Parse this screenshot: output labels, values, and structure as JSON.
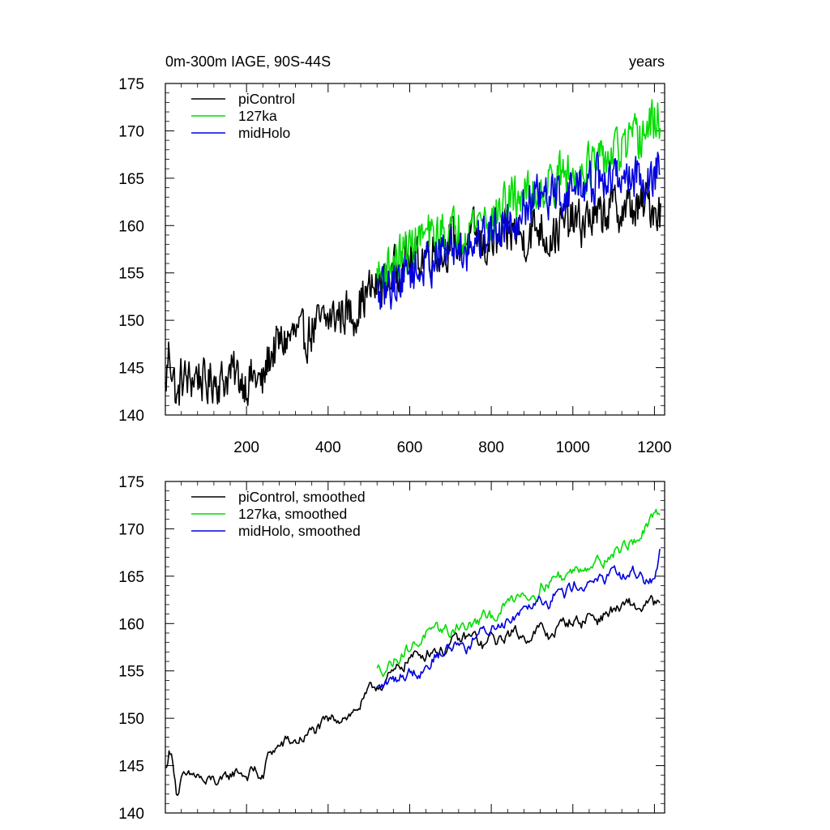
{
  "chart_data": [
    {
      "type": "line",
      "title": "0m-300m IAGE, 90S-44S",
      "title_right": "years",
      "xlabel": "",
      "ylabel": "",
      "xlim": [
        1,
        1225
      ],
      "ylim": [
        140,
        175
      ],
      "yticks": [
        140,
        145,
        150,
        155,
        160,
        165,
        170,
        175
      ],
      "xticks": [
        200,
        400,
        600,
        800,
        1000,
        1200
      ],
      "legend_location": "top-left",
      "smoothed": false,
      "series": [
        {
          "name": "piControl",
          "color": "#000000",
          "x": [
            1,
            10,
            20,
            30,
            40,
            60,
            80,
            100,
            120,
            140,
            160,
            180,
            200,
            220,
            240,
            250,
            260,
            280,
            300,
            320,
            340,
            360,
            380,
            400,
            420,
            440,
            460,
            480,
            500,
            520,
            540,
            560,
            580,
            600,
            620,
            640,
            660,
            680,
            700,
            720,
            740,
            760,
            780,
            800,
            820,
            840,
            860,
            880,
            900,
            920,
            940,
            960,
            980,
            1000,
            1020,
            1040,
            1060,
            1080,
            1100,
            1120,
            1140,
            1160,
            1180,
            1200,
            1215
          ],
          "values": [
            142.5,
            147.0,
            144.5,
            141.0,
            144.0,
            143.5,
            144.5,
            143.0,
            144.0,
            143.5,
            144.5,
            144.0,
            143.5,
            144.0,
            143.0,
            145.5,
            146.5,
            147.5,
            148.0,
            148.5,
            148.0,
            149.0,
            149.5,
            150.0,
            150.5,
            151.0,
            150.5,
            152.0,
            153.0,
            153.5,
            154.0,
            155.0,
            156.0,
            156.5,
            156.5,
            157.0,
            157.5,
            157.0,
            158.5,
            158.0,
            158.5,
            159.0,
            157.5,
            158.5,
            158.0,
            159.0,
            159.5,
            158.5,
            159.5,
            160.0,
            158.5,
            159.5,
            160.0,
            160.5,
            160.0,
            161.0,
            160.5,
            161.5,
            162.0,
            161.5,
            162.0,
            161.5,
            162.5,
            162.0,
            161.5
          ]
        },
        {
          "name": "127ka",
          "color": "#00dd00",
          "x": [
            520,
            540,
            560,
            580,
            600,
            620,
            640,
            660,
            680,
            700,
            720,
            740,
            760,
            780,
            800,
            820,
            840,
            860,
            880,
            900,
            920,
            940,
            960,
            980,
            1000,
            1020,
            1040,
            1060,
            1080,
            1100,
            1120,
            1140,
            1160,
            1180,
            1200,
            1215
          ],
          "values": [
            154.5,
            155.5,
            156.0,
            157.0,
            157.5,
            158.5,
            159.0,
            158.5,
            159.5,
            159.0,
            160.0,
            159.5,
            160.5,
            161.0,
            160.5,
            161.5,
            162.5,
            163.0,
            163.5,
            163.0,
            164.0,
            164.5,
            165.0,
            165.5,
            165.0,
            166.0,
            166.5,
            166.0,
            167.0,
            167.5,
            168.0,
            168.5,
            169.0,
            170.0,
            171.0,
            171.5
          ]
        },
        {
          "name": "midHolo",
          "color": "#0000dd",
          "x": [
            520,
            540,
            560,
            580,
            600,
            620,
            640,
            660,
            680,
            700,
            720,
            740,
            760,
            780,
            800,
            820,
            840,
            860,
            880,
            900,
            920,
            940,
            960,
            980,
            1000,
            1020,
            1040,
            1060,
            1080,
            1100,
            1120,
            1140,
            1160,
            1180,
            1200,
            1215
          ],
          "values": [
            152.5,
            153.0,
            154.0,
            154.5,
            155.5,
            155.0,
            156.0,
            156.5,
            157.0,
            157.5,
            158.0,
            157.5,
            158.5,
            159.0,
            159.5,
            160.0,
            160.5,
            161.0,
            162.0,
            162.5,
            163.0,
            162.5,
            163.5,
            163.0,
            164.0,
            164.5,
            164.0,
            165.0,
            164.5,
            165.0,
            165.5,
            165.0,
            165.5,
            164.5,
            165.0,
            168.0
          ]
        }
      ]
    },
    {
      "type": "line",
      "title": "",
      "xlabel": "",
      "ylabel": "",
      "xlim": [
        1,
        1225
      ],
      "ylim": [
        140,
        175
      ],
      "yticks": [
        140,
        145,
        150,
        155,
        160,
        165,
        170,
        175
      ],
      "legend_location": "top-left",
      "smoothed": true,
      "series": [
        {
          "name": "piControl, smoothed",
          "color": "#000000",
          "x": [
            1,
            10,
            20,
            30,
            40,
            60,
            80,
            100,
            120,
            140,
            160,
            180,
            200,
            220,
            240,
            250,
            260,
            280,
            300,
            320,
            340,
            360,
            380,
            400,
            420,
            440,
            460,
            480,
            500,
            520,
            540,
            560,
            580,
            600,
            620,
            640,
            660,
            680,
            700,
            720,
            740,
            760,
            780,
            800,
            820,
            840,
            860,
            880,
            900,
            920,
            940,
            960,
            980,
            1000,
            1020,
            1040,
            1060,
            1080,
            1100,
            1120,
            1140,
            1160,
            1180,
            1200,
            1215
          ],
          "values": [
            144.5,
            146.5,
            145.5,
            142.0,
            143.5,
            143.5,
            144.0,
            143.0,
            143.5,
            143.0,
            144.0,
            144.5,
            144.0,
            144.5,
            143.5,
            145.5,
            146.5,
            147.0,
            147.5,
            147.5,
            148.0,
            148.5,
            149.0,
            149.5,
            150.0,
            150.5,
            150.5,
            151.5,
            152.5,
            153.5,
            154.0,
            154.5,
            155.5,
            156.5,
            156.5,
            157.0,
            157.5,
            157.0,
            158.0,
            158.0,
            158.5,
            158.5,
            157.5,
            158.5,
            158.0,
            159.0,
            159.0,
            158.5,
            159.0,
            159.5,
            158.5,
            159.5,
            160.0,
            160.5,
            160.0,
            161.0,
            160.5,
            161.0,
            161.5,
            161.5,
            162.0,
            161.5,
            162.0,
            162.0,
            161.5
          ]
        },
        {
          "name": "127ka, smoothed",
          "color": "#00dd00",
          "x": [
            520,
            540,
            560,
            580,
            600,
            620,
            640,
            660,
            680,
            700,
            720,
            740,
            760,
            780,
            800,
            820,
            840,
            860,
            880,
            900,
            920,
            940,
            960,
            980,
            1000,
            1020,
            1040,
            1060,
            1080,
            1100,
            1120,
            1140,
            1160,
            1180,
            1200,
            1215
          ],
          "values": [
            155.0,
            155.5,
            156.0,
            157.0,
            157.5,
            158.0,
            159.0,
            158.5,
            159.5,
            159.0,
            160.0,
            159.5,
            160.0,
            160.5,
            160.5,
            161.5,
            162.0,
            163.0,
            163.5,
            163.0,
            164.0,
            164.5,
            165.0,
            165.0,
            165.5,
            166.0,
            166.5,
            166.5,
            167.0,
            167.5,
            168.0,
            168.5,
            169.0,
            170.0,
            171.0,
            171.5
          ]
        },
        {
          "name": "midHolo, smoothed",
          "color": "#0000dd",
          "x": [
            520,
            540,
            560,
            580,
            600,
            620,
            640,
            660,
            680,
            700,
            720,
            740,
            760,
            780,
            800,
            820,
            840,
            860,
            880,
            900,
            920,
            940,
            960,
            980,
            1000,
            1020,
            1040,
            1060,
            1080,
            1100,
            1120,
            1140,
            1160,
            1180,
            1200,
            1215
          ],
          "values": [
            153.0,
            153.5,
            154.0,
            154.5,
            155.0,
            155.0,
            155.5,
            156.5,
            157.0,
            157.5,
            158.0,
            157.5,
            158.5,
            159.0,
            159.5,
            160.0,
            160.5,
            161.0,
            162.0,
            162.5,
            163.0,
            162.5,
            163.5,
            163.0,
            164.0,
            164.5,
            164.0,
            165.0,
            164.5,
            165.0,
            165.0,
            165.0,
            165.5,
            164.5,
            165.0,
            168.0
          ]
        }
      ]
    }
  ]
}
